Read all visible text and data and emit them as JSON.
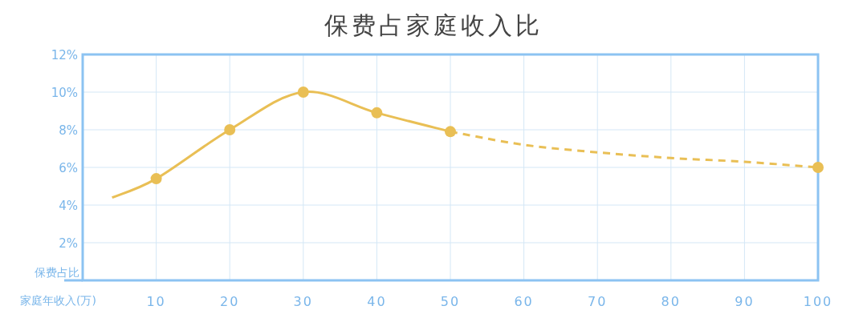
{
  "chart_data": {
    "type": "line",
    "title": "保费占家庭收入比",
    "xlabel": "家庭年收入(万)",
    "ylabel": "保费占比",
    "xlim": [
      0,
      100
    ],
    "xticks": [
      {
        "value": 0,
        "label": null
      },
      10,
      20,
      30,
      40,
      50,
      60,
      70,
      80,
      90,
      100
    ],
    "ylim": [
      0,
      12
    ],
    "yticks": [
      {
        "value": 0,
        "label": null
      },
      {
        "value": 2,
        "label": "2%"
      },
      {
        "value": 4,
        "label": "4%"
      },
      {
        "value": 6,
        "label": "6%"
      },
      {
        "value": 8,
        "label": "8%"
      },
      {
        "value": 10,
        "label": "10%"
      },
      {
        "value": 12,
        "label": "12%"
      }
    ],
    "grid": true,
    "series": [
      {
        "color": "#e9bf55",
        "line_style": "solid",
        "x": [
          4,
          10,
          20,
          30,
          40,
          50
        ],
        "values": [
          4.4,
          5.4,
          8.0,
          10.0,
          8.9,
          7.9
        ]
      },
      {
        "color": "#e9bf55",
        "line_style": "dashed",
        "x": [
          50,
          60,
          70,
          80,
          90,
          100
        ],
        "values": [
          7.9,
          7.2,
          6.8,
          6.5,
          6.3,
          6.0
        ]
      },
      {
        "type": "scatter",
        "color": "#e9bf55",
        "marker": "circle",
        "x": [
          10,
          20,
          30,
          40,
          50,
          100
        ],
        "values": [
          5.4,
          8.0,
          10.0,
          8.9,
          7.9,
          6.0
        ]
      }
    ]
  }
}
